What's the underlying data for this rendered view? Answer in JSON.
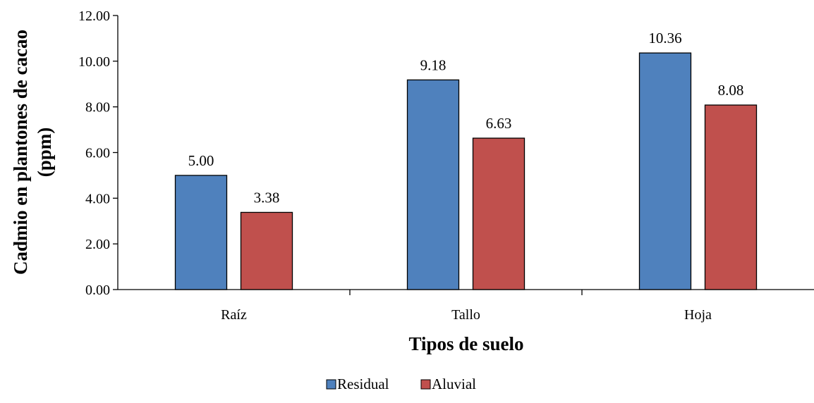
{
  "chart_data": {
    "type": "bar",
    "categories": [
      "Raíz",
      "Tallo",
      "Hoja"
    ],
    "series": [
      {
        "name": "Residual",
        "values": [
          5.0,
          9.18,
          10.36
        ],
        "labels": [
          "5.00",
          "9.18",
          "10.36"
        ],
        "color": "#4F81BD"
      },
      {
        "name": "Aluvial",
        "values": [
          3.38,
          6.63,
          8.08
        ],
        "labels": [
          "3.38",
          "6.63",
          "8.08"
        ],
        "color": "#C0504D"
      }
    ],
    "xlabel": "Tipos de suelo",
    "ylabel_lines": [
      "Cadmio en plantones de cacao",
      "(ppm)"
    ],
    "ylim": [
      0,
      12
    ],
    "yticks": [
      "0.00",
      "2.00",
      "4.00",
      "6.00",
      "8.00",
      "10.00",
      "12.00"
    ],
    "ytick_values": [
      0,
      2,
      4,
      6,
      8,
      10,
      12
    ],
    "grid": false,
    "legend_position": "bottom"
  }
}
